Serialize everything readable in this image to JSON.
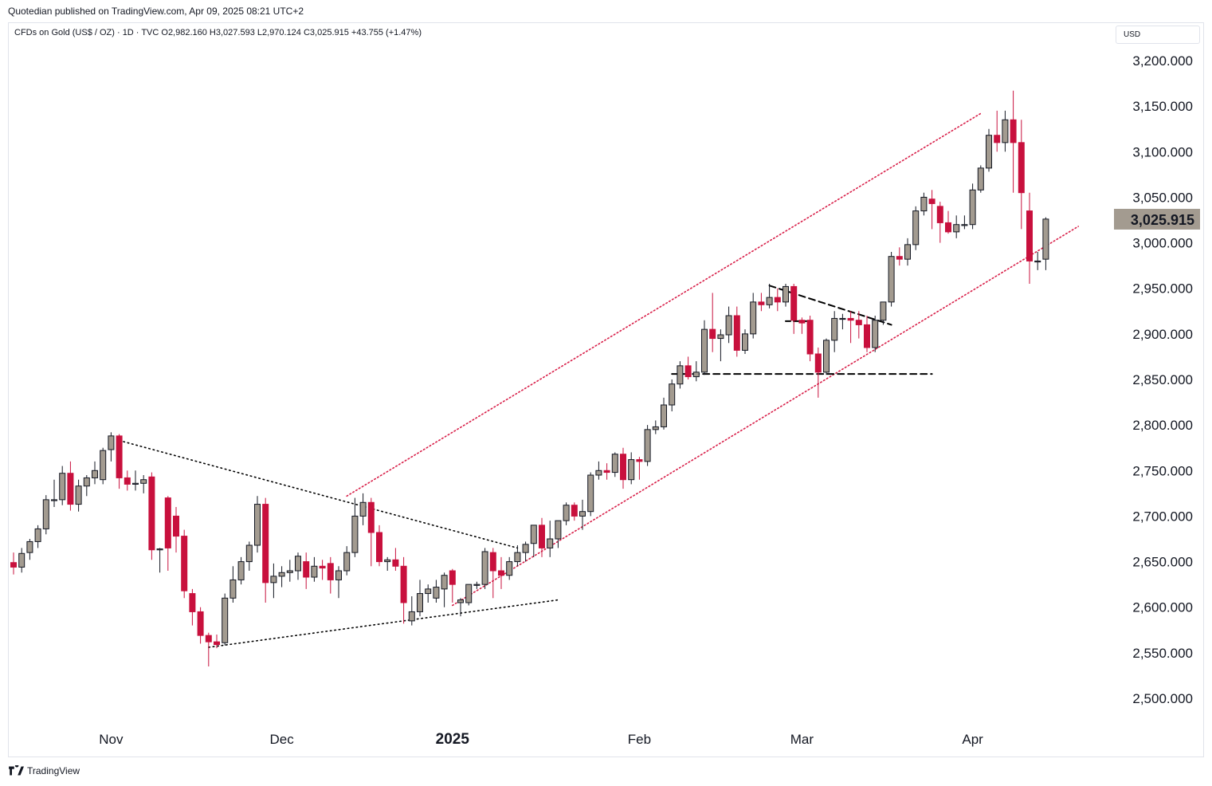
{
  "publisher_line": "Quotedian published on TradingView.com, Apr 09, 2025 08:21 UTC+2",
  "symbol_line": "CFDs on Gold (US$ / OZ) · 1D · TVC  O2,982.160  H3,027.593  L2,970.124  C3,025.915  +43.755 (+1.47%)",
  "currency": "USD",
  "footer_brand": "TradingView",
  "colors": {
    "up": "#a39b90",
    "down": "#c8103d",
    "channel": "#d81e48",
    "pattern": "#000000"
  },
  "chart_data": {
    "type": "candlestick",
    "title": "CFDs on Gold (US$ / OZ)",
    "interval": "1D",
    "source": "TVC",
    "ylim": [
      2470,
      3225
    ],
    "y_ticks": [
      "2,500.000",
      "2,550.000",
      "2,600.000",
      "2,650.000",
      "2,700.000",
      "2,750.000",
      "2,800.000",
      "2,850.000",
      "2,900.000",
      "2,950.000",
      "3,000.000",
      "3,050.000",
      "3,100.000",
      "3,150.000",
      "3,200.000"
    ],
    "y_tick_values": [
      2500,
      2550,
      2600,
      2650,
      2700,
      2750,
      2800,
      2850,
      2900,
      2950,
      3000,
      3050,
      3100,
      3150,
      3200
    ],
    "x_labels": [
      {
        "index": 12,
        "label": "Nov",
        "bold": false
      },
      {
        "index": 33,
        "label": "Dec",
        "bold": false
      },
      {
        "index": 54,
        "label": "2025",
        "bold": true
      },
      {
        "index": 77,
        "label": "Feb",
        "bold": false
      },
      {
        "index": 97,
        "label": "Mar",
        "bold": false
      },
      {
        "index": 118,
        "label": "Apr",
        "bold": false
      }
    ],
    "last_price": "3,025.915",
    "last_value": 3025.9,
    "candles": [
      [
        2649,
        2660,
        2636,
        2644
      ],
      [
        2644,
        2665,
        2638,
        2659
      ],
      [
        2660,
        2675,
        2652,
        2672
      ],
      [
        2672,
        2690,
        2665,
        2686
      ],
      [
        2686,
        2723,
        2680,
        2718
      ],
      [
        2718,
        2740,
        2710,
        2718
      ],
      [
        2718,
        2755,
        2712,
        2747
      ],
      [
        2747,
        2760,
        2706,
        2713
      ],
      [
        2713,
        2740,
        2705,
        2733
      ],
      [
        2733,
        2745,
        2722,
        2742
      ],
      [
        2742,
        2760,
        2735,
        2750
      ],
      [
        2740,
        2775,
        2735,
        2772
      ],
      [
        2773,
        2792,
        2760,
        2788
      ],
      [
        2788,
        2790,
        2730,
        2742
      ],
      [
        2742,
        2750,
        2728,
        2735
      ],
      [
        2735,
        2750,
        2728,
        2736
      ],
      [
        2736,
        2745,
        2725,
        2740
      ],
      [
        2743,
        2748,
        2652,
        2663
      ],
      [
        2663,
        2665,
        2638,
        2664
      ],
      [
        2720,
        2722,
        2640,
        2665
      ],
      [
        2700,
        2710,
        2660,
        2678
      ],
      [
        2678,
        2685,
        2610,
        2618
      ],
      [
        2615,
        2620,
        2580,
        2595
      ],
      [
        2595,
        2600,
        2560,
        2569
      ],
      [
        2569,
        2572,
        2535,
        2562
      ],
      [
        2562,
        2570,
        2555,
        2559
      ],
      [
        2561,
        2615,
        2558,
        2610
      ],
      [
        2610,
        2645,
        2605,
        2630
      ],
      [
        2630,
        2655,
        2625,
        2650
      ],
      [
        2650,
        2672,
        2640,
        2668
      ],
      [
        2668,
        2722,
        2660,
        2713
      ],
      [
        2713,
        2720,
        2605,
        2627
      ],
      [
        2627,
        2648,
        2610,
        2634
      ],
      [
        2634,
        2645,
        2622,
        2638
      ],
      [
        2638,
        2652,
        2628,
        2640
      ],
      [
        2640,
        2660,
        2630,
        2656
      ],
      [
        2650,
        2660,
        2620,
        2633
      ],
      [
        2633,
        2655,
        2628,
        2645
      ],
      [
        2645,
        2652,
        2630,
        2643
      ],
      [
        2648,
        2655,
        2615,
        2630
      ],
      [
        2630,
        2645,
        2610,
        2640
      ],
      [
        2640,
        2667,
        2635,
        2660
      ],
      [
        2660,
        2720,
        2655,
        2700
      ],
      [
        2700,
        2725,
        2690,
        2715
      ],
      [
        2715,
        2720,
        2645,
        2682
      ],
      [
        2682,
        2690,
        2645,
        2650
      ],
      [
        2650,
        2655,
        2640,
        2652
      ],
      [
        2652,
        2665,
        2640,
        2645
      ],
      [
        2645,
        2655,
        2582,
        2605
      ],
      [
        2585,
        2612,
        2580,
        2595
      ],
      [
        2595,
        2630,
        2590,
        2615
      ],
      [
        2615,
        2625,
        2605,
        2620
      ],
      [
        2610,
        2630,
        2605,
        2622
      ],
      [
        2620,
        2638,
        2600,
        2635
      ],
      [
        2640,
        2642,
        2605,
        2625
      ],
      [
        2605,
        2610,
        2590,
        2608
      ],
      [
        2605,
        2625,
        2602,
        2625
      ],
      [
        2625,
        2628,
        2620,
        2625
      ],
      [
        2625,
        2665,
        2620,
        2661
      ],
      [
        2660,
        2665,
        2610,
        2640
      ],
      [
        2640,
        2655,
        2620,
        2635
      ],
      [
        2635,
        2655,
        2630,
        2650
      ],
      [
        2650,
        2668,
        2645,
        2660
      ],
      [
        2660,
        2672,
        2650,
        2669
      ],
      [
        2670,
        2690,
        2655,
        2690
      ],
      [
        2690,
        2698,
        2655,
        2665
      ],
      [
        2665,
        2695,
        2655,
        2675
      ],
      [
        2675,
        2695,
        2665,
        2695
      ],
      [
        2695,
        2715,
        2690,
        2712
      ],
      [
        2712,
        2715,
        2695,
        2700
      ],
      [
        2700,
        2718,
        2685,
        2705
      ],
      [
        2705,
        2748,
        2700,
        2745
      ],
      [
        2745,
        2760,
        2740,
        2750
      ],
      [
        2750,
        2758,
        2740,
        2748
      ],
      [
        2748,
        2770,
        2743,
        2768
      ],
      [
        2768,
        2775,
        2730,
        2740
      ],
      [
        2740,
        2770,
        2735,
        2762
      ],
      [
        2762,
        2765,
        2740,
        2760
      ],
      [
        2760,
        2800,
        2755,
        2795
      ],
      [
        2795,
        2805,
        2790,
        2798
      ],
      [
        2798,
        2830,
        2795,
        2822
      ],
      [
        2822,
        2850,
        2815,
        2845
      ],
      [
        2845,
        2870,
        2840,
        2865
      ],
      [
        2865,
        2875,
        2850,
        2853
      ],
      [
        2853,
        2870,
        2848,
        2858
      ],
      [
        2858,
        2915,
        2855,
        2905
      ],
      [
        2905,
        2945,
        2880,
        2895
      ],
      [
        2895,
        2905,
        2870,
        2899
      ],
      [
        2899,
        2930,
        2890,
        2920
      ],
      [
        2920,
        2930,
        2875,
        2882
      ],
      [
        2882,
        2905,
        2878,
        2900
      ],
      [
        2900,
        2945,
        2895,
        2935
      ],
      [
        2935,
        2945,
        2925,
        2932
      ],
      [
        2932,
        2955,
        2928,
        2940
      ],
      [
        2940,
        2950,
        2925,
        2935
      ],
      [
        2935,
        2955,
        2930,
        2952
      ],
      [
        2952,
        2955,
        2900,
        2915
      ],
      [
        2915,
        2918,
        2900,
        2912
      ],
      [
        2915,
        2920,
        2870,
        2878
      ],
      [
        2878,
        2885,
        2830,
        2858
      ],
      [
        2858,
        2895,
        2855,
        2893
      ],
      [
        2893,
        2925,
        2880,
        2917
      ],
      [
        2917,
        2922,
        2905,
        2917
      ],
      [
        2917,
        2925,
        2890,
        2915
      ],
      [
        2915,
        2925,
        2895,
        2910
      ],
      [
        2910,
        2920,
        2880,
        2885
      ],
      [
        2885,
        2920,
        2880,
        2915
      ],
      [
        2915,
        2935,
        2910,
        2935
      ],
      [
        2935,
        2990,
        2930,
        2985
      ],
      [
        2985,
        2995,
        2975,
        2982
      ],
      [
        2982,
        3005,
        2975,
        2998
      ],
      [
        2998,
        3040,
        2992,
        3035
      ],
      [
        3035,
        3055,
        3030,
        3050
      ],
      [
        3048,
        3058,
        3015,
        3043
      ],
      [
        3040,
        3045,
        3000,
        3022
      ],
      [
        3022,
        3035,
        3010,
        3012
      ],
      [
        3012,
        3030,
        3005,
        3020
      ],
      [
        3020,
        3030,
        3015,
        3020
      ],
      [
        3020,
        3065,
        3015,
        3058
      ],
      [
        3058,
        3085,
        3055,
        3082
      ],
      [
        3082,
        3125,
        3078,
        3118
      ],
      [
        3118,
        3145,
        3100,
        3110
      ],
      [
        3110,
        3145,
        3100,
        3135
      ],
      [
        3135,
        3167,
        3055,
        3110
      ],
      [
        3110,
        3135,
        3015,
        3055
      ],
      [
        3035,
        3055,
        2955,
        2980
      ],
      [
        2980,
        2990,
        2970,
        2980
      ],
      [
        2982,
        3028,
        2970,
        3026
      ]
    ]
  }
}
